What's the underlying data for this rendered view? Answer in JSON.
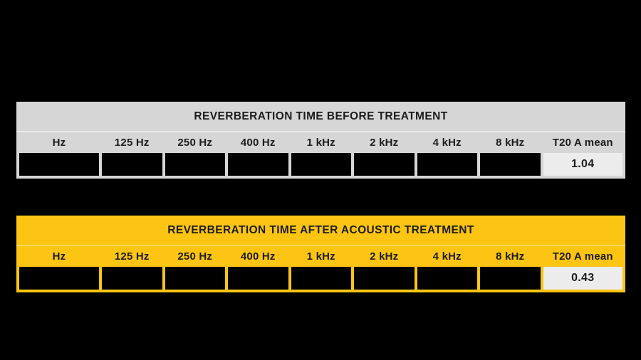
{
  "page": {
    "background": "#000000"
  },
  "chart_data": [
    {
      "type": "table",
      "title": "REVERBERATION TIME BEFORE TREATMENT",
      "columns": [
        "Hz",
        "125 Hz",
        "250 Hz",
        "400 Hz",
        "1 kHz",
        "2 kHz",
        "4 kHz",
        "8 kHz",
        "T20 A mean"
      ],
      "row_values": [
        "",
        "",
        "",
        "",
        "",
        "",
        "",
        "",
        "1.04"
      ],
      "mean_label": "T20 A mean",
      "mean_value": "1.04",
      "colors": {
        "base": "#d6d6d6",
        "divider": "#e9e9e9",
        "value_cell": "#ececec",
        "data_cell": "#000000",
        "text": "#1c1c1c"
      }
    },
    {
      "type": "table",
      "title": "REVERBERATION TIME AFTER ACOUSTIC TREATMENT",
      "columns": [
        "Hz",
        "125 Hz",
        "250 Hz",
        "400 Hz",
        "1 kHz",
        "2 kHz",
        "4 kHz",
        "8 kHz",
        "T20 A mean"
      ],
      "row_values": [
        "",
        "",
        "",
        "",
        "",
        "",
        "",
        "",
        "0.43"
      ],
      "mean_label": "T20 A mean",
      "mean_value": "0.43",
      "colors": {
        "base": "#fdc513",
        "divider": "#fed65c",
        "value_cell": "#ececec",
        "data_cell": "#000000",
        "text": "#1c1c1c"
      }
    }
  ]
}
